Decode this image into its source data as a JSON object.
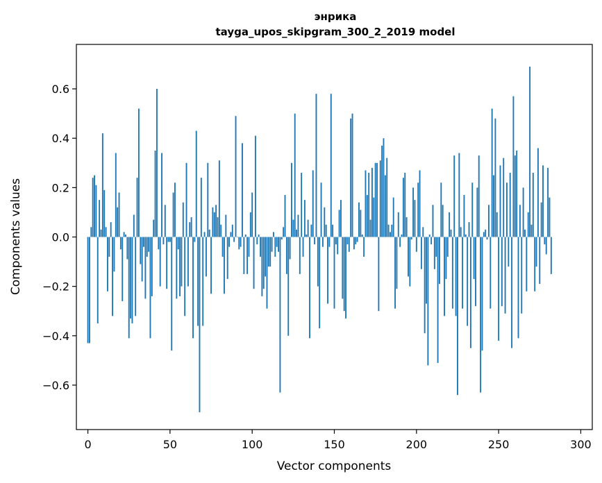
{
  "chart_data": {
    "type": "bar",
    "title": "энрика",
    "subtitle": "tayga_upos_skipgram_300_2_2019 model",
    "xlabel": "Vector components",
    "ylabel": "Components values",
    "xlim": [
      -7,
      307
    ],
    "ylim": [
      -0.78,
      0.78
    ],
    "xticks": [
      0,
      50,
      100,
      150,
      200,
      250,
      300
    ],
    "yticks": [
      -0.6,
      -0.4,
      -0.2,
      0.0,
      0.2,
      0.4,
      0.6
    ],
    "ytick_labels": [
      "−0.6",
      "−0.4",
      "−0.2",
      "0.0",
      "0.2",
      "0.4",
      "0.6"
    ],
    "bar_color": "#1f77b4",
    "grid": false,
    "values": [
      -0.43,
      -0.43,
      0.04,
      0.24,
      0.25,
      0.21,
      -0.35,
      0.15,
      0.03,
      0.42,
      0.19,
      0.04,
      -0.22,
      -0.08,
      0.06,
      -0.32,
      -0.14,
      0.34,
      0.12,
      0.18,
      -0.05,
      -0.26,
      0.02,
      0.01,
      -0.09,
      -0.41,
      -0.33,
      -0.35,
      0.09,
      -0.32,
      0.24,
      0.52,
      -0.11,
      -0.18,
      -0.04,
      -0.25,
      -0.08,
      -0.06,
      -0.41,
      -0.24,
      0.07,
      0.35,
      0.6,
      -0.05,
      -0.2,
      0.34,
      -0.03,
      0.13,
      -0.21,
      -0.02,
      -0.02,
      -0.46,
      0.18,
      0.22,
      -0.25,
      -0.05,
      -0.24,
      -0.2,
      0.14,
      -0.32,
      0.3,
      -0.2,
      0.06,
      0.08,
      -0.41,
      -0.02,
      0.43,
      -0.36,
      -0.71,
      0.24,
      -0.36,
      0.02,
      -0.16,
      0.3,
      0.03,
      -0.23,
      0.12,
      0.1,
      0.13,
      0.08,
      0.31,
      0.05,
      -0.08,
      -0.23,
      0.09,
      -0.17,
      -0.04,
      0.02,
      0.05,
      -0.02,
      0.49,
      0.0,
      -0.05,
      -0.04,
      0.38,
      -0.15,
      0.01,
      -0.15,
      -0.08,
      0.1,
      0.18,
      -0.21,
      0.41,
      -0.03,
      0.01,
      -0.08,
      -0.24,
      -0.21,
      -0.16,
      -0.29,
      -0.12,
      -0.12,
      -0.06,
      0.02,
      -0.08,
      -0.04,
      -0.06,
      -0.63,
      -0.01,
      0.04,
      0.17,
      -0.15,
      -0.4,
      -0.09,
      0.3,
      0.07,
      0.5,
      0.03,
      0.09,
      -0.15,
      0.26,
      -0.08,
      0.15,
      0.01,
      0.07,
      -0.41,
      0.05,
      0.27,
      -0.03,
      0.58,
      -0.2,
      -0.37,
      0.22,
      -0.04,
      0.12,
      0.05,
      -0.27,
      -0.04,
      0.58,
      0.05,
      -0.29,
      -0.03,
      -0.07,
      0.11,
      0.15,
      -0.25,
      -0.3,
      -0.33,
      -0.03,
      -0.06,
      0.48,
      0.5,
      -0.05,
      -0.03,
      -0.02,
      0.14,
      0.11,
      0.01,
      -0.08,
      0.27,
      0.17,
      0.26,
      0.07,
      0.28,
      0.16,
      0.3,
      0.3,
      -0.3,
      0.31,
      0.37,
      0.4,
      0.25,
      0.32,
      0.05,
      0.02,
      0.05,
      0.16,
      -0.29,
      -0.21,
      0.1,
      -0.04,
      0.01,
      0.24,
      0.26,
      0.08,
      -0.16,
      -0.2,
      -0.01,
      0.2,
      0.15,
      -0.06,
      0.22,
      0.27,
      -0.13,
      0.04,
      -0.39,
      -0.27,
      -0.52,
      0.01,
      -0.03,
      0.13,
      -0.13,
      -0.08,
      -0.51,
      -0.19,
      0.22,
      0.13,
      -0.32,
      -0.17,
      -0.08,
      0.1,
      0.03,
      -0.29,
      0.33,
      -0.32,
      -0.64,
      0.34,
      0.04,
      -0.29,
      0.17,
      0.01,
      -0.36,
      0.06,
      -0.45,
      0.22,
      -0.17,
      -0.28,
      0.2,
      0.33,
      -0.63,
      -0.46,
      0.02,
      0.03,
      -0.01,
      0.13,
      -0.29,
      0.52,
      0.25,
      0.48,
      0.1,
      -0.42,
      0.29,
      -0.28,
      0.32,
      -0.31,
      0.22,
      -0.12,
      0.26,
      -0.45,
      0.57,
      0.33,
      0.35,
      -0.41,
      0.13,
      -0.31,
      0.2,
      0.03,
      -0.22,
      0.1,
      0.69,
      0.05,
      0.26,
      -0.22,
      -0.12,
      0.36,
      -0.19,
      0.14,
      0.29,
      -0.03,
      -0.07,
      0.28,
      0.16,
      -0.15
    ]
  }
}
